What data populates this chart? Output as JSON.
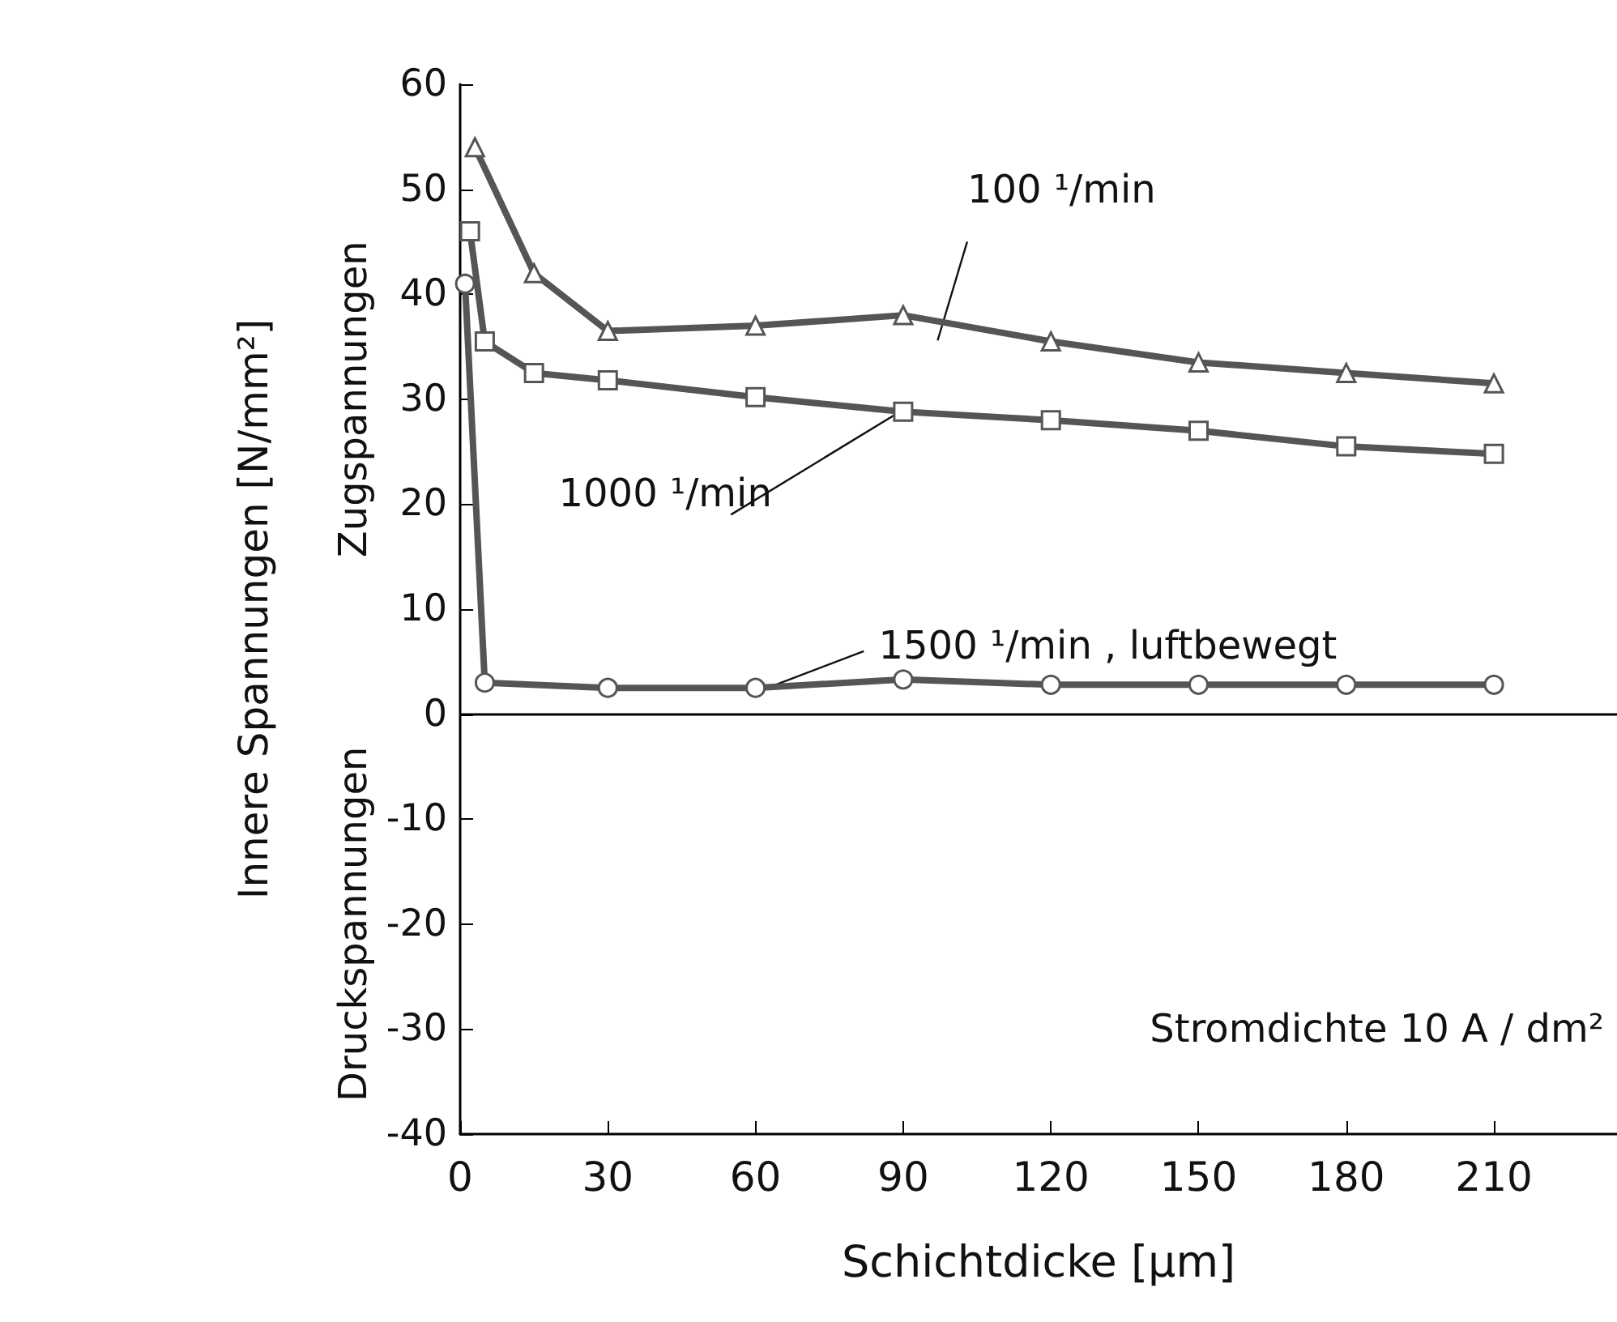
{
  "chart_data": {
    "type": "line",
    "xlabel": "Schichtdicke [µm]",
    "ylabel": "Innere Spannungen [N/mm²]",
    "xlim": [
      0,
      235
    ],
    "xticks": [
      0,
      30,
      60,
      90,
      120,
      150,
      180,
      210
    ],
    "ylim": [
      -40,
      60
    ],
    "yticks": [
      -40,
      -30,
      -20,
      -10,
      0,
      10,
      20,
      30,
      40,
      50,
      60
    ],
    "grid": false,
    "legend": false,
    "line_style": "solid",
    "series": [
      {
        "name": "100 ¹/min",
        "color": "#555555",
        "marker": "triangle",
        "x": [
          3,
          15,
          30,
          60,
          90,
          120,
          150,
          180,
          210
        ],
        "values": [
          54,
          42,
          36.5,
          37,
          38,
          35.5,
          33.5,
          32.5,
          31.5
        ]
      },
      {
        "name": "1000 ¹/min",
        "color": "#555555",
        "marker": "square",
        "x": [
          2,
          5,
          15,
          30,
          60,
          90,
          120,
          150,
          180,
          210
        ],
        "values": [
          46,
          35.5,
          32.5,
          31.8,
          30.2,
          28.8,
          28,
          27,
          25.5,
          24.8
        ]
      },
      {
        "name": "1500 ¹/min , luftbewegt",
        "color": "#555555",
        "marker": "circle",
        "x": [
          1,
          5,
          30,
          60,
          90,
          120,
          150,
          180,
          210
        ],
        "values": [
          41,
          3,
          2.5,
          2.5,
          3.3,
          2.8,
          2.8,
          2.8,
          2.8
        ]
      }
    ],
    "ref_lines": [
      {
        "axis": "y",
        "value": 0
      }
    ],
    "annotations": [
      "Zugspannungen",
      "Druckspannungen",
      "Stromdichte 10 A / dm²"
    ]
  }
}
